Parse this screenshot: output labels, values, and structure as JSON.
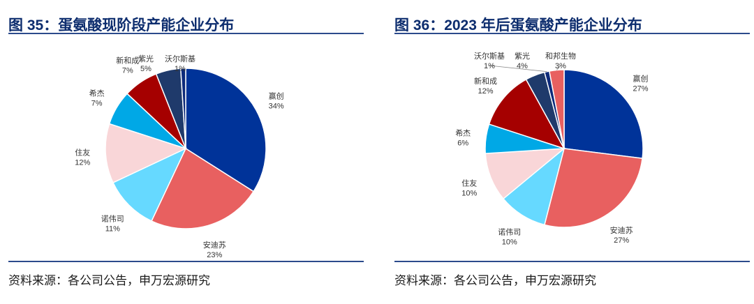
{
  "source_label": "资料来源：各公司公告，申万宏源研究",
  "colors": {
    "heading": "#0d2d6e",
    "rule": "#2b4a8b"
  },
  "chart_data": [
    {
      "type": "pie",
      "title": "图 35：蛋氨酸现阶段产能企业分布",
      "slices": [
        {
          "label": "赢创",
          "value": 34,
          "text": "34%",
          "color": "#003399"
        },
        {
          "label": "安迪苏",
          "value": 23,
          "text": "23%",
          "color": "#e86060"
        },
        {
          "label": "诺伟司",
          "value": 11,
          "text": "11%",
          "color": "#66d9ff"
        },
        {
          "label": "住友",
          "value": 12,
          "text": "12%",
          "color": "#f9d6d8"
        },
        {
          "label": "希杰",
          "value": 7,
          "text": "7%",
          "color": "#00a8e6"
        },
        {
          "label": "新和成",
          "value": 7,
          "text": "7%",
          "color": "#a50000"
        },
        {
          "label": "紫光",
          "value": 5,
          "text": "5%",
          "color": "#1f3a6b"
        },
        {
          "label": "沃尔斯基",
          "value": 1,
          "text": "1%",
          "color": "#0d2a7a"
        }
      ]
    },
    {
      "type": "pie",
      "title": "图 36：2023 年后蛋氨酸产能企业分布",
      "slices": [
        {
          "label": "赢创",
          "value": 27,
          "text": "27%",
          "color": "#003399"
        },
        {
          "label": "安迪苏",
          "value": 27,
          "text": "27%",
          "color": "#e86060"
        },
        {
          "label": "诺伟司",
          "value": 10,
          "text": "10%",
          "color": "#66d9ff"
        },
        {
          "label": "住友",
          "value": 10,
          "text": "10%",
          "color": "#f9d6d8"
        },
        {
          "label": "希杰",
          "value": 6,
          "text": "6%",
          "color": "#00a8e6"
        },
        {
          "label": "新和成",
          "value": 12,
          "text": "12%",
          "color": "#a50000"
        },
        {
          "label": "紫光",
          "value": 4,
          "text": "4%",
          "color": "#1f3a6b"
        },
        {
          "label": "沃尔斯基",
          "value": 1,
          "text": "1%",
          "color": "#0d2a7a"
        },
        {
          "label": "和邦生物",
          "value": 3,
          "text": "3%",
          "color": "#e86060"
        }
      ]
    }
  ]
}
